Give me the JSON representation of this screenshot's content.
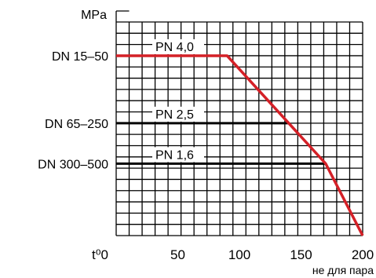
{
  "chart_data": {
    "type": "line",
    "y_unit_label": "MPa",
    "x_axis_label": "t⁰0",
    "x_note": "не для пара",
    "xlim": [
      0,
      200
    ],
    "x_ticks": [
      {
        "value": 50,
        "label": "50"
      },
      {
        "value": 100,
        "label": "100"
      },
      {
        "value": 150,
        "label": "150"
      },
      {
        "value": 200,
        "label": "200"
      }
    ],
    "ylim": [
      0,
      4.75
    ],
    "y_ticks": [
      {
        "value": 4.0,
        "label": "DN 15–50"
      },
      {
        "value": 2.5,
        "label": "DN 65–250"
      },
      {
        "value": 1.6,
        "label": "DN 300–500"
      }
    ],
    "pressure_levels": [
      {
        "label": "PN 4,0",
        "value": 4.0
      },
      {
        "label": "PN 2,5",
        "value": 2.5
      },
      {
        "label": "PN 1,6",
        "value": 1.6
      }
    ],
    "series": [
      {
        "x": [
          0,
          90,
          170,
          200
        ],
        "y": [
          4.0,
          4.0,
          1.6,
          0.0
        ]
      }
    ],
    "grid": true,
    "colors": {
      "curve": "#d42027",
      "level_line": "#000000",
      "grid": "#000000"
    }
  }
}
